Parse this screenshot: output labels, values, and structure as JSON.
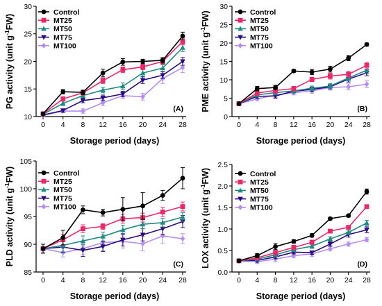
{
  "chart_data": [
    {
      "type": "line",
      "panel_label": "(A)",
      "xlabel": "Storage period (days)",
      "ylabel": "PG activity (unit g",
      "ylabel_sup": "-1",
      "ylabel_tail": "FW)",
      "x": [
        0,
        4,
        8,
        12,
        16,
        20,
        24,
        28
      ],
      "xlim": [
        0,
        28
      ],
      "ylim": [
        10,
        30
      ],
      "yticks": [
        10,
        15,
        20,
        25,
        30
      ],
      "legend_position": "top-left",
      "series": [
        {
          "name": "Control",
          "values": [
            10.5,
            14.5,
            14.4,
            17.9,
            19.9,
            20.0,
            20.2,
            24.6
          ],
          "errors": [
            0.2,
            0.4,
            0.4,
            0.7,
            0.6,
            0.4,
            0.5,
            0.7
          ]
        },
        {
          "name": "MT25",
          "values": [
            10.5,
            13.2,
            14.3,
            16.5,
            18.5,
            19.0,
            20.0,
            23.6
          ],
          "errors": [
            0.2,
            0.4,
            0.4,
            0.5,
            0.5,
            0.5,
            0.5,
            0.6
          ]
        },
        {
          "name": "MT50",
          "values": [
            10.4,
            12.4,
            13.8,
            14.8,
            15.5,
            17.9,
            18.8,
            22.5
          ],
          "errors": [
            0.2,
            0.4,
            0.4,
            0.5,
            0.6,
            0.6,
            0.6,
            0.7
          ]
        },
        {
          "name": "MT75",
          "values": [
            10.3,
            11.1,
            12.9,
            13.4,
            14.1,
            16.6,
            17.5,
            20.0
          ],
          "errors": [
            0.2,
            0.3,
            0.4,
            0.5,
            0.5,
            0.6,
            0.6,
            0.7
          ]
        },
        {
          "name": "MT100",
          "values": [
            10.2,
            11.0,
            11.0,
            12.5,
            13.8,
            13.6,
            16.9,
            18.9
          ],
          "errors": [
            0.2,
            0.3,
            0.4,
            0.5,
            0.5,
            0.6,
            0.9,
            0.9
          ]
        }
      ]
    },
    {
      "type": "line",
      "panel_label": "(B)",
      "xlabel": "Storage period (days)",
      "ylabel": "PME activity (unit g",
      "ylabel_sup": "-1",
      "ylabel_tail": "FW)",
      "x": [
        0,
        4,
        8,
        12,
        16,
        20,
        24,
        28
      ],
      "xlim": [
        0,
        28
      ],
      "ylim": [
        0,
        30
      ],
      "yticks": [
        0,
        5,
        10,
        15,
        20,
        25,
        30
      ],
      "legend_position": "top-left",
      "series": [
        {
          "name": "Control",
          "values": [
            3.5,
            7.6,
            7.9,
            12.4,
            12.1,
            12.9,
            15.9,
            19.6
          ],
          "errors": [
            0.3,
            0.6,
            0.6,
            0.4,
            0.7,
            0.8,
            0.7,
            0.4
          ]
        },
        {
          "name": "MT25",
          "values": [
            3.5,
            6.4,
            7.1,
            7.6,
            10.1,
            11.0,
            11.5,
            13.9
          ],
          "errors": [
            0.3,
            0.6,
            0.8,
            0.6,
            0.6,
            0.8,
            0.8,
            0.9
          ]
        },
        {
          "name": "MT50",
          "values": [
            3.5,
            5.9,
            6.5,
            7.0,
            7.7,
            8.3,
            10.5,
            12.6
          ],
          "errors": [
            0.3,
            0.5,
            0.6,
            0.6,
            0.6,
            0.7,
            0.8,
            0.8
          ]
        },
        {
          "name": "MT75",
          "values": [
            3.5,
            5.5,
            5.6,
            6.9,
            7.4,
            8.1,
            10.2,
            11.9
          ],
          "errors": [
            0.3,
            0.5,
            0.6,
            0.5,
            0.6,
            0.6,
            0.8,
            0.8
          ]
        },
        {
          "name": "MT100",
          "values": [
            3.5,
            4.8,
            5.9,
            6.5,
            7.0,
            7.9,
            8.1,
            8.8
          ],
          "errors": [
            0.3,
            0.5,
            0.7,
            0.6,
            0.7,
            0.7,
            0.8,
            0.9
          ]
        }
      ]
    },
    {
      "type": "line",
      "panel_label": "(C)",
      "xlabel": "Storage period (days)",
      "ylabel": "PLD activity (unit g",
      "ylabel_sup": "-1",
      "ylabel_tail": "FW)",
      "x": [
        0,
        4,
        8,
        12,
        16,
        20,
        24,
        28
      ],
      "xlim": [
        0,
        28
      ],
      "ylim": [
        85,
        105
      ],
      "yticks": [
        85,
        90,
        95,
        100,
        105
      ],
      "legend_position": "top-left",
      "series": [
        {
          "name": "Control",
          "values": [
            89.2,
            91.2,
            96.2,
            95.7,
            96.3,
            96.9,
            98.8,
            101.9
          ],
          "errors": [
            0.8,
            1.3,
            0.7,
            0.6,
            2.1,
            2.4,
            0.9,
            1.9
          ]
        },
        {
          "name": "MT25",
          "values": [
            89.2,
            90.8,
            92.8,
            93.2,
            94.6,
            94.8,
            95.8,
            96.8
          ],
          "errors": [
            0.8,
            1.0,
            0.7,
            0.5,
            0.8,
            0.8,
            0.8,
            0.8
          ]
        },
        {
          "name": "MT50",
          "values": [
            89.2,
            89.8,
            90.6,
            91.4,
            92.6,
            93.6,
            93.9,
            94.9
          ],
          "errors": [
            0.8,
            1.2,
            0.9,
            0.8,
            0.8,
            0.8,
            0.8,
            0.8
          ]
        },
        {
          "name": "MT75",
          "values": [
            89.2,
            89.5,
            88.9,
            89.6,
            90.8,
            91.7,
            92.8,
            94.1
          ],
          "errors": [
            0.8,
            1.0,
            1.1,
            0.9,
            1.1,
            1.1,
            1.0,
            1.1
          ]
        },
        {
          "name": "MT100",
          "values": [
            89.2,
            88.5,
            89.2,
            90.3,
            90.5,
            90.1,
            91.5,
            91.0
          ],
          "errors": [
            0.8,
            0.8,
            1.1,
            1.5,
            1.2,
            1.3,
            1.4,
            0.9
          ]
        }
      ]
    },
    {
      "type": "line",
      "panel_label": "(D)",
      "xlabel": "Storage period (days)",
      "ylabel": "LOX activity (unit g",
      "ylabel_sup": "-1",
      "ylabel_tail": "FW)",
      "x": [
        0,
        4,
        8,
        12,
        16,
        20,
        24,
        28
      ],
      "xlim": [
        0,
        28
      ],
      "ylim": [
        0.0,
        2.5
      ],
      "yticks": [
        "0.0",
        "0.5",
        "1.0",
        "1.5",
        "2.0",
        "2.5"
      ],
      "legend_position": "top-left",
      "series": [
        {
          "name": "Control",
          "values": [
            0.26,
            0.38,
            0.59,
            0.71,
            0.85,
            1.24,
            1.31,
            1.87
          ],
          "errors": [
            0.03,
            0.05,
            0.07,
            0.04,
            0.04,
            0.03,
            0.03,
            0.06
          ]
        },
        {
          "name": "MT25",
          "values": [
            0.26,
            0.33,
            0.45,
            0.57,
            0.69,
            0.95,
            1.04,
            1.52
          ],
          "errors": [
            0.03,
            0.05,
            0.05,
            0.05,
            0.05,
            0.04,
            0.04,
            0.03
          ]
        },
        {
          "name": "MT50",
          "values": [
            0.26,
            0.3,
            0.4,
            0.52,
            0.6,
            0.77,
            0.92,
            1.14
          ],
          "errors": [
            0.03,
            0.04,
            0.05,
            0.05,
            0.05,
            0.05,
            0.05,
            0.06
          ]
        },
        {
          "name": "MT75",
          "values": [
            0.26,
            0.27,
            0.35,
            0.46,
            0.45,
            0.65,
            0.87,
            0.98
          ],
          "errors": [
            0.03,
            0.04,
            0.04,
            0.04,
            0.04,
            0.05,
            0.06,
            0.07
          ]
        },
        {
          "name": "MT100",
          "values": [
            0.26,
            0.24,
            0.3,
            0.38,
            0.42,
            0.54,
            0.65,
            0.75
          ],
          "errors": [
            0.03,
            0.04,
            0.06,
            0.05,
            0.06,
            0.05,
            0.05,
            0.05
          ]
        }
      ]
    }
  ],
  "series_colors": {
    "Control": "#000000",
    "MT25": "#ee2769",
    "MT50": "#1e8a83",
    "MT75": "#2a0a82",
    "MT100": "#b48cf2"
  },
  "series_markers": {
    "Control": "circle",
    "MT25": "square",
    "MT50": "triangle-up",
    "MT75": "triangle-down",
    "MT100": "diamond"
  }
}
